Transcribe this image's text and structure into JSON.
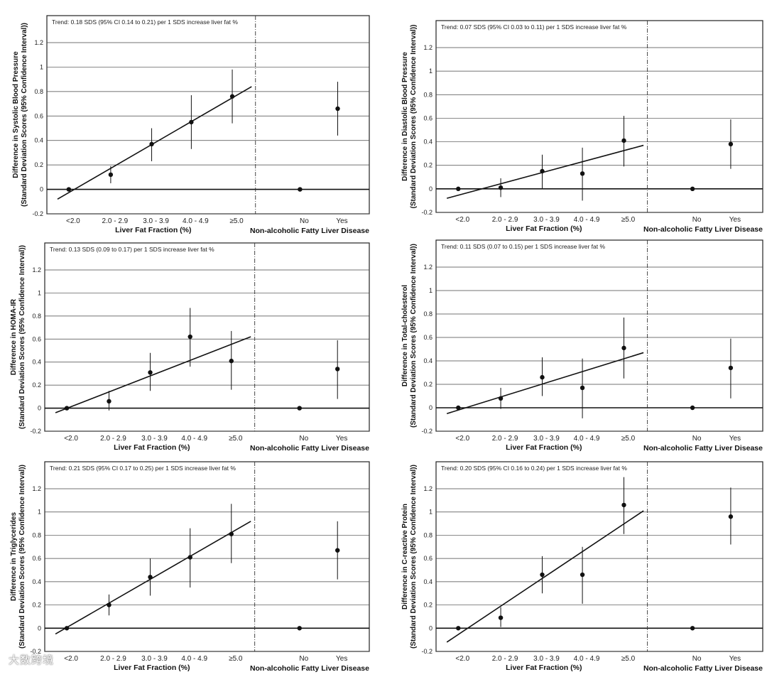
{
  "figure": {
    "watermark": "大数跨境"
  },
  "chart_data": [
    {
      "type": "scatter",
      "trend_text": "Trend: 0.18 SDS (95% CI 0.14 to 0.21) per 1 SDS increase liver fat %",
      "ylabel": [
        "Difference in Systolic Blood Pressure",
        "(Standard Deviation Scores (95% Confidence Interval))"
      ],
      "xlabel_left": "Liver Fat Fraction (%)",
      "xlabel_right": "Non-alcoholic Fatty Liver Disease",
      "ylim": [
        -0.2,
        1.2
      ],
      "yticks": [
        "-0.2",
        "0",
        "0.2",
        "0.4",
        "0.6",
        "0.8",
        "1",
        "1.2"
      ],
      "grid": true,
      "categories": [
        "<2.0",
        "2.0 - 2.9",
        "3.0 - 3.9",
        "4.0 - 4.9",
        "≥5.0",
        "No",
        "Yes"
      ],
      "points": [
        {
          "y": 0.0,
          "lo": null,
          "hi": null
        },
        {
          "y": 0.12,
          "lo": 0.05,
          "hi": 0.19
        },
        {
          "y": 0.37,
          "lo": 0.23,
          "hi": 0.5
        },
        {
          "y": 0.55,
          "lo": 0.33,
          "hi": 0.77
        },
        {
          "y": 0.76,
          "lo": 0.54,
          "hi": 0.98
        },
        {
          "y": 0.0,
          "lo": null,
          "hi": null
        },
        {
          "y": 0.66,
          "lo": 0.44,
          "hi": 0.88
        }
      ],
      "trend_line": [
        -0.08,
        0.84
      ]
    },
    {
      "type": "scatter",
      "trend_text": "Trend: 0.07 SDS (95% CI 0.03 to 0.11) per 1 SDS increase liver fat %",
      "ylabel": [
        "Difference in Diastolic Blood Pressure",
        "(Standard Deviation Scores (95% Confidence Interval))"
      ],
      "xlabel_left": "Liver Fat Fraction (%)",
      "xlabel_right": "Non-alcoholic Fatty Liver Disease",
      "ylim": [
        -0.2,
        1.2
      ],
      "yticks": [
        "-0.2",
        "0",
        "0.2",
        "0.4",
        "0.6",
        "0.8",
        "1",
        "1.2"
      ],
      "grid": true,
      "categories": [
        "<2.0",
        "2.0 - 2.9",
        "3.0 - 3.9",
        "4.0 - 4.9",
        "≥5.0",
        "No",
        "Yes"
      ],
      "points": [
        {
          "y": 0.0,
          "lo": null,
          "hi": null
        },
        {
          "y": 0.01,
          "lo": -0.07,
          "hi": 0.09
        },
        {
          "y": 0.15,
          "lo": 0.0,
          "hi": 0.29
        },
        {
          "y": 0.13,
          "lo": -0.1,
          "hi": 0.35
        },
        {
          "y": 0.41,
          "lo": 0.19,
          "hi": 0.62
        },
        {
          "y": 0.0,
          "lo": null,
          "hi": null
        },
        {
          "y": 0.38,
          "lo": 0.17,
          "hi": 0.59
        }
      ],
      "trend_line": [
        -0.08,
        0.37
      ]
    },
    {
      "type": "scatter",
      "trend_text": "Trend: 0.13 SDS (0.09 to 0.17) per 1 SDS increase liver fat %",
      "ylabel": [
        "Difference in HOMA-IR",
        "(Standard Deviation Scores (95% Confidence Interval))"
      ],
      "xlabel_left": "Liver Fat Fraction (%)",
      "xlabel_right": "Non-alcoholic Fatty Liver Disease",
      "ylim": [
        -0.2,
        1.2
      ],
      "yticks": [
        "-0.2",
        "0",
        "0.2",
        "0.4",
        "0.6",
        "0.8",
        "1",
        "1.2"
      ],
      "grid": true,
      "categories": [
        "<2.0",
        "2.0 - 2.9",
        "3.0 - 3.9",
        "4.0 - 4.9",
        "≥5.0",
        "No",
        "Yes"
      ],
      "points": [
        {
          "y": 0.0,
          "lo": null,
          "hi": null
        },
        {
          "y": 0.06,
          "lo": -0.02,
          "hi": 0.15
        },
        {
          "y": 0.31,
          "lo": 0.15,
          "hi": 0.48
        },
        {
          "y": 0.62,
          "lo": 0.36,
          "hi": 0.87
        },
        {
          "y": 0.41,
          "lo": 0.16,
          "hi": 0.67
        },
        {
          "y": 0.0,
          "lo": null,
          "hi": null
        },
        {
          "y": 0.34,
          "lo": 0.08,
          "hi": 0.59
        }
      ],
      "trend_line": [
        -0.04,
        0.62
      ]
    },
    {
      "type": "scatter",
      "trend_text": "Trend: 0.11 SDS (0.07 to 0.15) per 1 SDS increase liver fat %",
      "ylabel": [
        "Difference in Total-cholesterol",
        "(Standard Deviation Scores (95% Confidence Interval))"
      ],
      "xlabel_left": "Liver Fat Fraction (%)",
      "xlabel_right": "Non-alcoholic Fatty Liver Disease",
      "ylim": [
        -0.2,
        1.2
      ],
      "yticks": [
        "-0.2",
        "0",
        "0.2",
        "0.4",
        "0.6",
        "0.8",
        "1",
        "1.2"
      ],
      "grid": true,
      "categories": [
        "<2.0",
        "2.0 - 2.9",
        "3.0 - 3.9",
        "4.0 - 4.9",
        "≥5.0",
        "No",
        "Yes"
      ],
      "points": [
        {
          "y": 0.0,
          "lo": null,
          "hi": null
        },
        {
          "y": 0.08,
          "lo": -0.01,
          "hi": 0.17
        },
        {
          "y": 0.26,
          "lo": 0.1,
          "hi": 0.43
        },
        {
          "y": 0.17,
          "lo": -0.09,
          "hi": 0.42
        },
        {
          "y": 0.51,
          "lo": 0.25,
          "hi": 0.77
        },
        {
          "y": 0.0,
          "lo": null,
          "hi": null
        },
        {
          "y": 0.34,
          "lo": 0.08,
          "hi": 0.59
        }
      ],
      "trend_line": [
        -0.05,
        0.47
      ]
    },
    {
      "type": "scatter",
      "trend_text": "Trend: 0.21 SDS (95% CI 0.17 to 0.25) per 1 SDS increase liver fat %",
      "ylabel": [
        "Difference in Triglycerides",
        "(Standard Deviation Scores (95% Confidence Interval))"
      ],
      "xlabel_left": "Liver Fat Fraction (%)",
      "xlabel_right": "Non-alcoholic Fatty Liver Disease",
      "ylim": [
        -0.2,
        1.2
      ],
      "yticks": [
        "-0.2",
        "0",
        "0.2",
        "0.4",
        "0.6",
        "0.8",
        "1",
        "1.2"
      ],
      "grid": true,
      "categories": [
        "<2.0",
        "2.0 - 2.9",
        "3.0 - 3.9",
        "4.0 - 4.9",
        "≥5.0",
        "No",
        "Yes"
      ],
      "points": [
        {
          "y": 0.0,
          "lo": null,
          "hi": null
        },
        {
          "y": 0.2,
          "lo": 0.11,
          "hi": 0.29
        },
        {
          "y": 0.44,
          "lo": 0.28,
          "hi": 0.6
        },
        {
          "y": 0.61,
          "lo": 0.35,
          "hi": 0.86
        },
        {
          "y": 0.81,
          "lo": 0.56,
          "hi": 1.07
        },
        {
          "y": 0.0,
          "lo": null,
          "hi": null
        },
        {
          "y": 0.67,
          "lo": 0.42,
          "hi": 0.92
        }
      ],
      "trend_line": [
        -0.05,
        0.92
      ]
    },
    {
      "type": "scatter",
      "trend_text": "Trend: 0.20 SDS (95% CI 0.16 to 0.24) per 1 SDS increase liver fat %",
      "ylabel": [
        "Difference in C-reactive Protein",
        "(Standard Deviation Scores (95% Confidence Interval))"
      ],
      "xlabel_left": "Liver Fat Fraction (%)",
      "xlabel_right": "Non-alcoholic Fatty Liver Disease",
      "ylim": [
        -0.2,
        1.2
      ],
      "yticks": [
        "-0.2",
        "0",
        "0.2",
        "0.4",
        "0.6",
        "0.8",
        "1",
        "1.2"
      ],
      "grid": true,
      "categories": [
        "<2.0",
        "2.0 - 2.9",
        "3.0 - 3.9",
        "4.0 - 4.9",
        "≥5.0",
        "No",
        "Yes"
      ],
      "points": [
        {
          "y": 0.0,
          "lo": null,
          "hi": null
        },
        {
          "y": 0.09,
          "lo": 0.01,
          "hi": 0.18
        },
        {
          "y": 0.46,
          "lo": 0.3,
          "hi": 0.62
        },
        {
          "y": 0.46,
          "lo": 0.21,
          "hi": 0.7
        },
        {
          "y": 1.06,
          "lo": 0.81,
          "hi": 1.3
        },
        {
          "y": 0.0,
          "lo": null,
          "hi": null
        },
        {
          "y": 0.96,
          "lo": 0.72,
          "hi": 1.21
        }
      ],
      "trend_line": [
        -0.12,
        1.01
      ]
    }
  ]
}
